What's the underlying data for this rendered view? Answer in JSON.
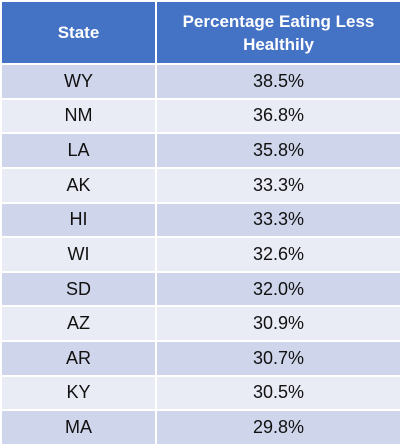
{
  "table": {
    "headers": [
      "State",
      "Percentage Eating Less Healthily"
    ],
    "rows": [
      [
        "WY",
        "38.5%"
      ],
      [
        "NM",
        "36.8%"
      ],
      [
        "LA",
        "35.8%"
      ],
      [
        "AK",
        "33.3%"
      ],
      [
        "HI",
        "33.3%"
      ],
      [
        "WI",
        "32.6%"
      ],
      [
        "SD",
        "32.0%"
      ],
      [
        "AZ",
        "30.9%"
      ],
      [
        "AR",
        "30.7%"
      ],
      [
        "KY",
        "30.5%"
      ],
      [
        "MA",
        "29.8%"
      ]
    ]
  }
}
